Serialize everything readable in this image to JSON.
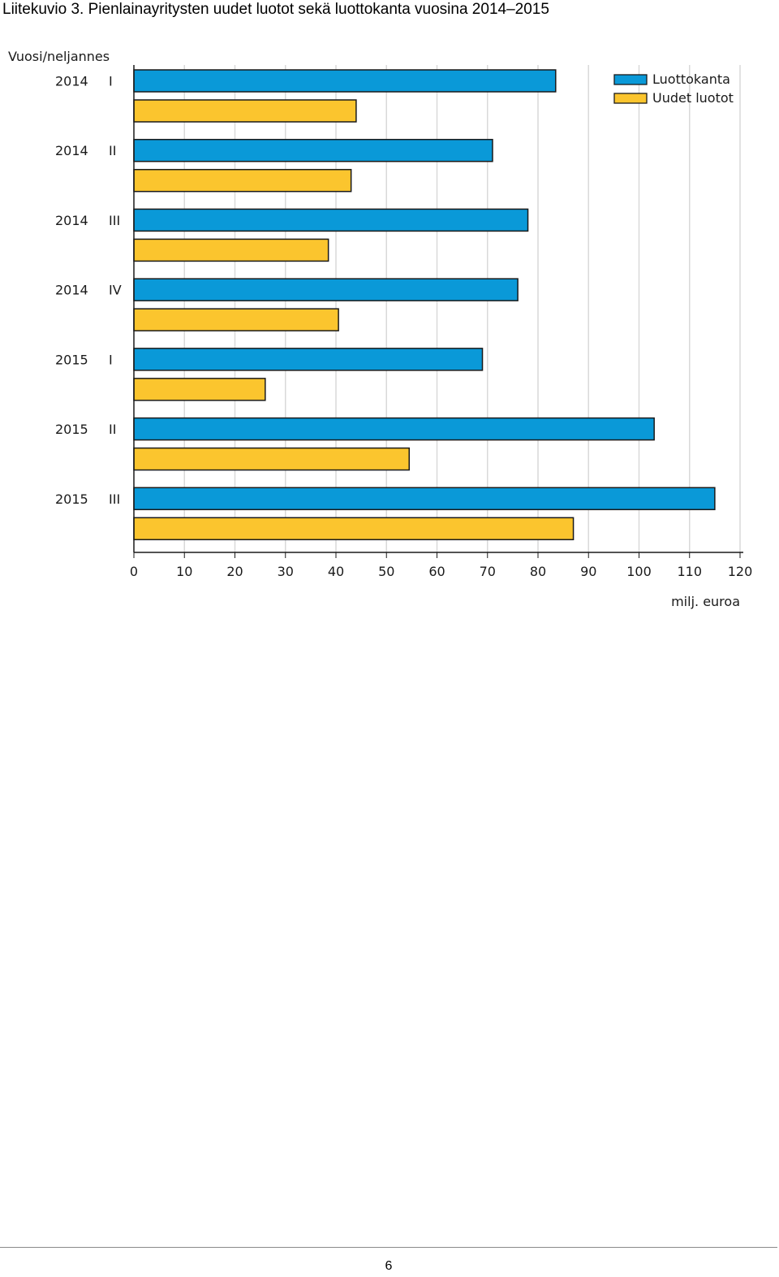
{
  "document": {
    "title": "Liitekuvio 3. Pienlainayritysten uudet luotot sekä luottokanta vuosina 2014–2015",
    "page_number": "6"
  },
  "chart_data": {
    "type": "bar",
    "orientation": "horizontal",
    "category_axis_title": "Vuosi/neljannes",
    "value_axis_unit": "milj. euroa",
    "categories": [
      {
        "year": "2014",
        "quarter": "I"
      },
      {
        "year": "2014",
        "quarter": "II"
      },
      {
        "year": "2014",
        "quarter": "III"
      },
      {
        "year": "2014",
        "quarter": "IV"
      },
      {
        "year": "2015",
        "quarter": "I"
      },
      {
        "year": "2015",
        "quarter": "II"
      },
      {
        "year": "2015",
        "quarter": "III"
      }
    ],
    "series": [
      {
        "name": "Luottokanta",
        "color": "#0a99d8",
        "values": [
          83.5,
          71,
          78,
          76,
          69,
          103,
          115
        ]
      },
      {
        "name": "Uudet luotot",
        "color": "#fbc52e",
        "values": [
          44,
          43,
          38.5,
          40.5,
          26,
          54.5,
          87
        ]
      }
    ],
    "x_ticks": [
      0,
      10,
      20,
      30,
      40,
      50,
      60,
      70,
      80,
      90,
      100,
      110,
      120
    ],
    "xlim": [
      0,
      120
    ],
    "grid": "vertical",
    "legend_position": "top-right"
  }
}
